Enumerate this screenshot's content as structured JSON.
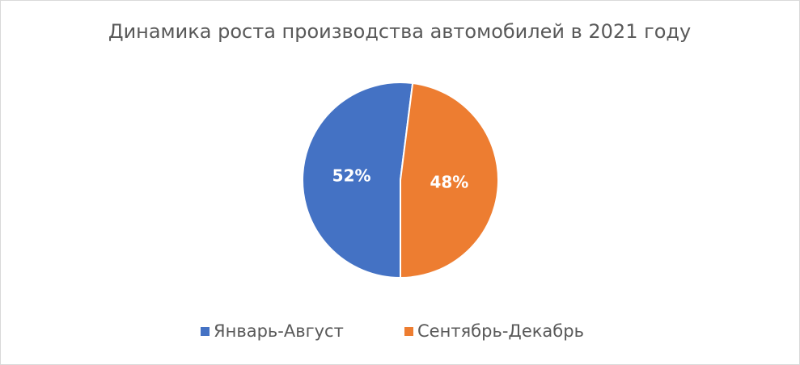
{
  "chart_data": {
    "type": "pie",
    "title": "Динамика  роста производства автомобилей в 2021 году",
    "categories": [
      "Январь-Август",
      "Сентябрь-Декабрь"
    ],
    "values": [
      52,
      48
    ],
    "value_labels": [
      "52%",
      "48%"
    ],
    "colors": [
      "#4472c4",
      "#ed7d31"
    ],
    "legend": "bottom"
  }
}
